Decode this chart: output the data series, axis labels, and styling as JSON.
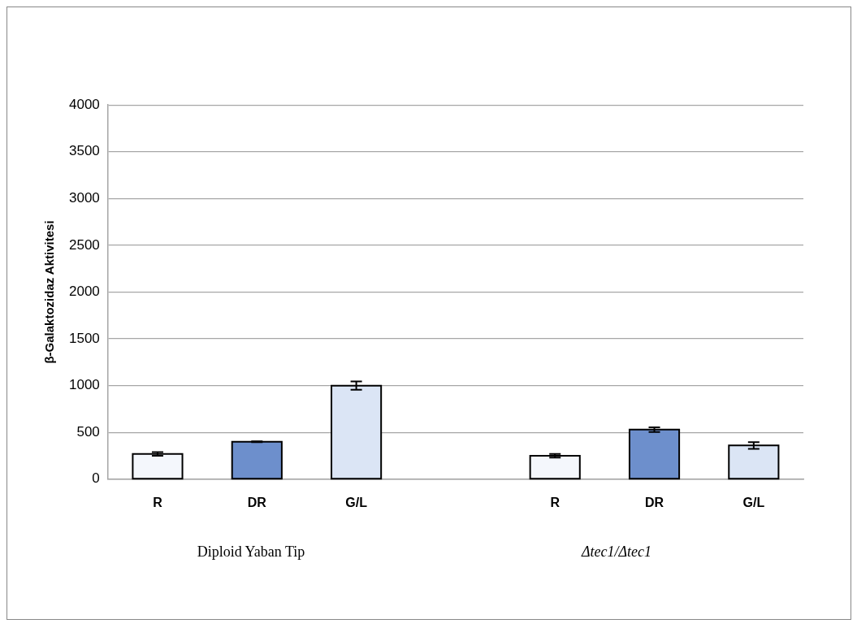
{
  "chart_data": {
    "type": "bar",
    "ylabel": "β-Galaktozidaz Aktivitesi",
    "categories": [
      "R",
      "DR",
      "G/L",
      null,
      "R",
      "DR",
      "G/L"
    ],
    "values": [
      270,
      400,
      1000,
      null,
      250,
      530,
      360
    ],
    "errors": [
      20,
      5,
      45,
      null,
      20,
      25,
      35
    ],
    "colors": [
      "#f4f7fc",
      "#6d8fcc",
      "#dbe5f5",
      null,
      "#f4f7fc",
      "#6d8fcc",
      "#dbe5f5"
    ],
    "ylim": [
      0,
      4000
    ],
    "yticks": [
      0,
      500,
      1000,
      1500,
      2000,
      2500,
      3000,
      3500,
      4000
    ],
    "grid": "y",
    "legend": false,
    "annotations": [
      "Diploid Yaban Tip",
      "Δtec1/Δtec1"
    ]
  }
}
